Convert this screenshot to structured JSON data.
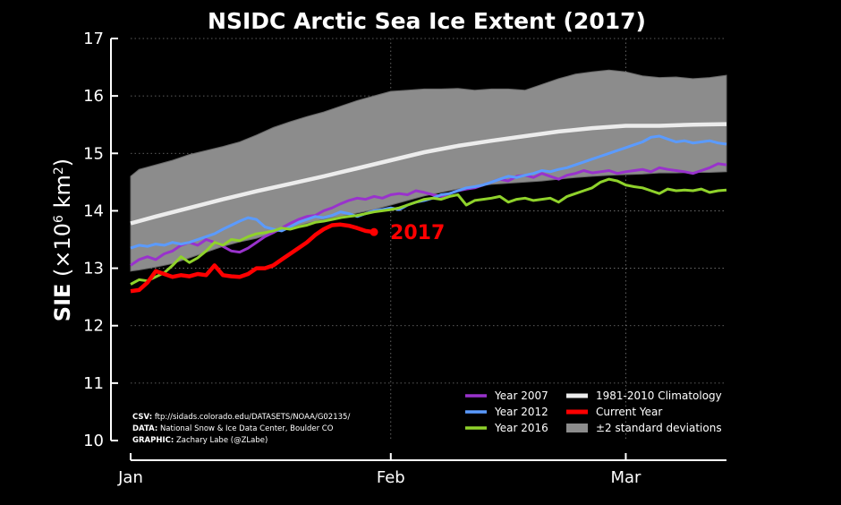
{
  "chart_data": {
    "type": "line",
    "title": "NSIDC Arctic Sea Ice Extent (2017)",
    "ylabel_main": "SIE",
    "ylabel_unit_open": " (×10",
    "ylabel_unit_exp1": "6",
    "ylabel_unit_mid": " km",
    "ylabel_unit_exp2": "2",
    "ylabel_unit_close": ")",
    "xlim_days": [
      1,
      72
    ],
    "ylim": [
      10,
      17
    ],
    "yticks": [
      10,
      11,
      12,
      13,
      14,
      15,
      16,
      17
    ],
    "xticks": [
      {
        "label": "Jan",
        "day": 1
      },
      {
        "label": "Feb",
        "day": 32
      },
      {
        "label": "Mar",
        "day": 60
      }
    ],
    "grid": "dotted",
    "legend_position": "bottom-right",
    "end_label": "2017",
    "colors": {
      "y2007": "#9932cc",
      "y2012": "#5b9bff",
      "y2016": "#8fd22b",
      "climatology": "#ececec",
      "current": "#ff0000",
      "band": "#8c8c8c",
      "background": "#000000",
      "axis": "#ffffff"
    },
    "legend": {
      "y2007": "Year 2007",
      "y2012": "Year 2012",
      "y2016": "Year 2016",
      "climatology": "1981-2010 Climatology",
      "current": "Current Year",
      "std": "±2 standard deviations"
    },
    "credits": {
      "csv_label": "CSV:",
      "csv": " ftp://sidads.colorado.edu/DATASETS/NOAA/G02135/",
      "data_label": "DATA:",
      "data": " National Snow & Ice Data Center, Boulder CO",
      "graphic_label": "GRAPHIC:",
      "graphic": " Zachary Labe (@ZLabe)"
    },
    "series": [
      {
        "key": "std_upper",
        "x": [
          1,
          2,
          4,
          6,
          8,
          10,
          12,
          14,
          16,
          18,
          20,
          22,
          24,
          26,
          28,
          30,
          32,
          34,
          36,
          38,
          40,
          42,
          44,
          46,
          48,
          50,
          52,
          54,
          56,
          58,
          60,
          62,
          64,
          66,
          68,
          70,
          72
        ],
        "values": [
          14.6,
          14.72,
          14.8,
          14.88,
          14.98,
          15.05,
          15.12,
          15.2,
          15.32,
          15.45,
          15.55,
          15.64,
          15.72,
          15.82,
          15.92,
          16.0,
          16.08,
          16.1,
          16.12,
          16.12,
          16.13,
          16.1,
          16.12,
          16.12,
          16.1,
          16.2,
          16.3,
          16.38,
          16.42,
          16.45,
          16.42,
          16.35,
          16.32,
          16.33,
          16.3,
          16.32,
          16.36
        ]
      },
      {
        "key": "std_lower",
        "x": [
          1,
          2,
          4,
          6,
          8,
          10,
          12,
          14,
          16,
          18,
          20,
          22,
          24,
          26,
          28,
          30,
          32,
          34,
          36,
          38,
          40,
          42,
          44,
          46,
          48,
          50,
          52,
          54,
          56,
          58,
          60,
          62,
          64,
          66,
          68,
          70,
          72
        ],
        "values": [
          12.95,
          12.97,
          13.02,
          13.08,
          13.18,
          13.28,
          13.38,
          13.46,
          13.52,
          13.62,
          13.7,
          13.78,
          13.85,
          13.9,
          13.96,
          14.02,
          14.1,
          14.18,
          14.26,
          14.32,
          14.38,
          14.42,
          14.46,
          14.48,
          14.5,
          14.52,
          14.55,
          14.58,
          14.6,
          14.62,
          14.63,
          14.64,
          14.66,
          14.66,
          14.67,
          14.67,
          14.68
        ]
      },
      {
        "key": "climatology",
        "x": [
          1,
          4,
          8,
          12,
          16,
          20,
          24,
          28,
          32,
          36,
          40,
          44,
          48,
          52,
          56,
          60,
          64,
          68,
          72
        ],
        "values": [
          13.78,
          13.9,
          14.05,
          14.2,
          14.34,
          14.47,
          14.6,
          14.74,
          14.88,
          15.02,
          15.13,
          15.22,
          15.3,
          15.38,
          15.44,
          15.48,
          15.48,
          15.5,
          15.51
        ]
      },
      {
        "key": "y2007",
        "name": "Year 2007",
        "x": [
          1,
          2,
          3,
          4,
          5,
          6,
          7,
          8,
          9,
          10,
          11,
          12,
          13,
          14,
          15,
          16,
          17,
          18,
          19,
          20,
          21,
          22,
          23,
          24,
          25,
          26,
          27,
          28,
          29,
          30,
          31,
          32,
          33,
          34,
          35,
          36,
          37,
          38,
          39,
          40,
          41,
          42,
          43,
          44,
          45,
          46,
          47,
          48,
          49,
          50,
          51,
          52,
          53,
          54,
          55,
          56,
          57,
          58,
          59,
          60,
          61,
          62,
          63,
          64,
          65,
          66,
          67,
          68,
          69,
          70,
          71,
          72
        ],
        "values": [
          13.05,
          13.15,
          13.2,
          13.15,
          13.25,
          13.3,
          13.4,
          13.45,
          13.4,
          13.5,
          13.45,
          13.38,
          13.3,
          13.28,
          13.35,
          13.45,
          13.55,
          13.62,
          13.7,
          13.78,
          13.85,
          13.9,
          13.92,
          14.0,
          14.05,
          14.12,
          14.18,
          14.22,
          14.2,
          14.25,
          14.22,
          14.28,
          14.3,
          14.28,
          14.35,
          14.32,
          14.28,
          14.25,
          14.3,
          14.35,
          14.38,
          14.4,
          14.45,
          14.5,
          14.55,
          14.52,
          14.6,
          14.62,
          14.58,
          14.65,
          14.6,
          14.55,
          14.62,
          14.65,
          14.7,
          14.66,
          14.68,
          14.7,
          14.65,
          14.68,
          14.7,
          14.72,
          14.68,
          14.75,
          14.72,
          14.7,
          14.68,
          14.65,
          14.7,
          14.75,
          14.82,
          14.8
        ]
      },
      {
        "key": "y2012",
        "name": "Year 2012",
        "x": [
          1,
          2,
          3,
          4,
          5,
          6,
          7,
          8,
          9,
          10,
          11,
          12,
          13,
          14,
          15,
          16,
          17,
          18,
          19,
          20,
          21,
          22,
          23,
          24,
          25,
          26,
          27,
          28,
          29,
          30,
          31,
          32,
          33,
          34,
          35,
          36,
          37,
          38,
          39,
          40,
          41,
          42,
          43,
          44,
          45,
          46,
          47,
          48,
          49,
          50,
          51,
          52,
          53,
          54,
          55,
          56,
          57,
          58,
          59,
          60,
          61,
          62,
          63,
          64,
          65,
          66,
          67,
          68,
          69,
          70,
          71,
          72
        ],
        "values": [
          13.35,
          13.4,
          13.38,
          13.42,
          13.4,
          13.45,
          13.42,
          13.45,
          13.5,
          13.55,
          13.6,
          13.68,
          13.75,
          13.82,
          13.88,
          13.85,
          13.72,
          13.68,
          13.65,
          13.72,
          13.8,
          13.85,
          13.9,
          13.88,
          13.92,
          13.98,
          13.95,
          13.9,
          13.95,
          14.0,
          14.02,
          14.05,
          14.02,
          14.1,
          14.15,
          14.18,
          14.22,
          14.28,
          14.3,
          14.35,
          14.4,
          14.42,
          14.45,
          14.5,
          14.55,
          14.6,
          14.58,
          14.62,
          14.65,
          14.7,
          14.68,
          14.72,
          14.75,
          14.8,
          14.85,
          14.9,
          14.95,
          15.0,
          15.05,
          15.1,
          15.15,
          15.2,
          15.28,
          15.3,
          15.25,
          15.2,
          15.22,
          15.18,
          15.2,
          15.22,
          15.18,
          15.16
        ]
      },
      {
        "key": "y2016",
        "name": "Year 2016",
        "x": [
          1,
          2,
          3,
          4,
          5,
          6,
          7,
          8,
          9,
          10,
          11,
          12,
          13,
          14,
          15,
          16,
          17,
          18,
          19,
          20,
          21,
          22,
          23,
          24,
          25,
          26,
          27,
          28,
          29,
          30,
          31,
          32,
          33,
          34,
          35,
          36,
          37,
          38,
          39,
          40,
          41,
          42,
          43,
          44,
          45,
          46,
          47,
          48,
          49,
          50,
          51,
          52,
          53,
          54,
          55,
          56,
          57,
          58,
          59,
          60,
          61,
          62,
          63,
          64,
          65,
          66,
          67,
          68,
          69,
          70,
          71,
          72
        ],
        "values": [
          12.72,
          12.8,
          12.78,
          12.85,
          12.92,
          13.05,
          13.2,
          13.1,
          13.18,
          13.3,
          13.45,
          13.4,
          13.5,
          13.48,
          13.55,
          13.6,
          13.62,
          13.65,
          13.7,
          13.68,
          13.72,
          13.75,
          13.8,
          13.82,
          13.85,
          13.88,
          13.9,
          13.92,
          13.95,
          13.98,
          14.0,
          14.02,
          14.05,
          14.1,
          14.15,
          14.2,
          14.22,
          14.2,
          14.25,
          14.28,
          14.1,
          14.18,
          14.2,
          14.22,
          14.25,
          14.15,
          14.2,
          14.22,
          14.18,
          14.2,
          14.22,
          14.15,
          14.25,
          14.3,
          14.35,
          14.4,
          14.5,
          14.55,
          14.52,
          14.45,
          14.42,
          14.4,
          14.35,
          14.3,
          14.38,
          14.35,
          14.36,
          14.35,
          14.38,
          14.32,
          14.35,
          14.36
        ]
      },
      {
        "key": "current",
        "name": "2017",
        "x": [
          1,
          2,
          3,
          4,
          5,
          6,
          7,
          8,
          9,
          10,
          11,
          12,
          13,
          14,
          15,
          16,
          17,
          18,
          19,
          20,
          21,
          22,
          23,
          24,
          25,
          26,
          27,
          28,
          29,
          30
        ],
        "values": [
          12.6,
          12.62,
          12.75,
          12.95,
          12.9,
          12.85,
          12.88,
          12.86,
          12.9,
          12.88,
          13.05,
          12.88,
          12.86,
          12.85,
          12.9,
          13.0,
          13.0,
          13.05,
          13.15,
          13.25,
          13.35,
          13.45,
          13.58,
          13.68,
          13.75,
          13.76,
          13.74,
          13.7,
          13.65,
          13.63
        ]
      }
    ]
  }
}
